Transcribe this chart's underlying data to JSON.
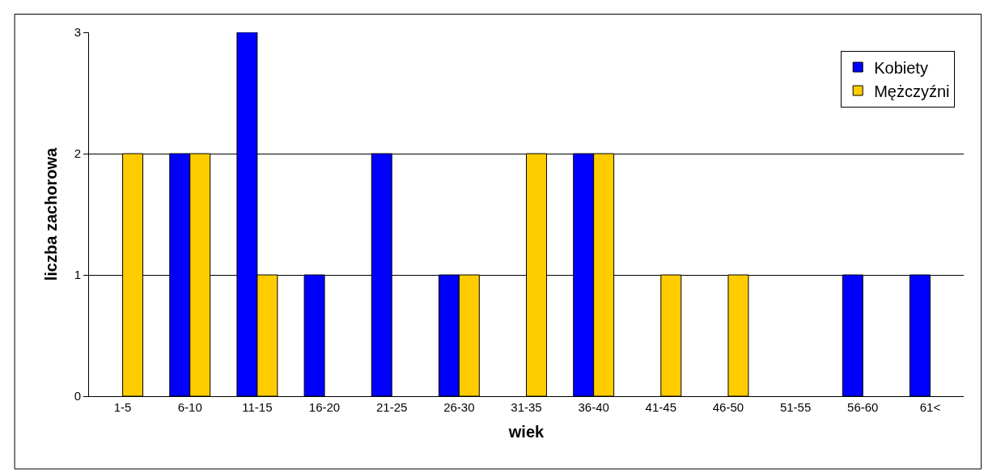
{
  "chart_data": {
    "type": "bar",
    "xlabel": "wiek",
    "ylabel": "liczba zachorowa",
    "categories": [
      "1-5",
      "6-10",
      "11-15",
      "16-20",
      "21-25",
      "26-30",
      "31-35",
      "36-40",
      "41-45",
      "46-50",
      "51-55",
      "56-60",
      "61<"
    ],
    "series": [
      {
        "name": "Kobiety",
        "color": "#0000ff",
        "values": [
          null,
          2,
          3,
          1,
          2,
          1,
          null,
          2,
          null,
          null,
          null,
          1,
          1
        ]
      },
      {
        "name": "Mężczyźni",
        "color": "#ffcc00",
        "values": [
          2,
          2,
          1,
          null,
          null,
          1,
          2,
          2,
          1,
          1,
          null,
          null,
          null
        ]
      }
    ],
    "ylim": [
      0,
      3
    ],
    "yticks": [
      0,
      1,
      2,
      3
    ],
    "grid": "y",
    "legend": "top right"
  }
}
